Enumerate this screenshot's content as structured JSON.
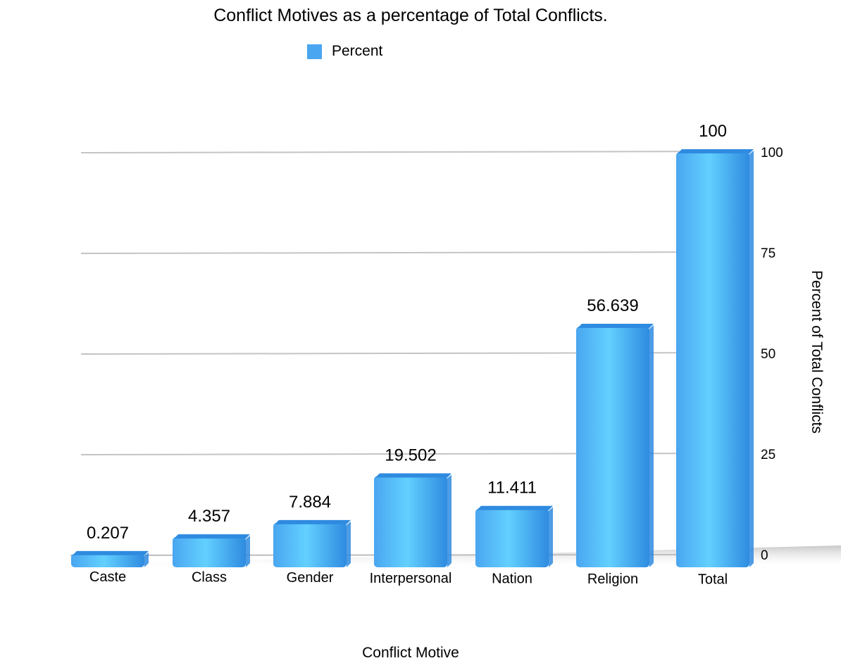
{
  "chart_data": {
    "type": "bar",
    "title": "Conflict Motives as a percentage of Total Conflicts.",
    "xlabel": "Conflict Motive",
    "ylabel": "Percent of Total Conflicts",
    "categories": [
      "Caste",
      "Class",
      "Gender",
      "Interpersonal",
      "Nation",
      "Religion",
      "Total"
    ],
    "series": [
      {
        "name": "Percent",
        "values": [
          0.207,
          4.357,
          7.884,
          19.502,
          11.411,
          56.639,
          100
        ],
        "data_labels": [
          "0.207",
          "4.357",
          "7.884",
          "19.502",
          "11.411",
          "56.639",
          "100"
        ]
      }
    ],
    "ylim": [
      0,
      100
    ],
    "yticks": [
      "0",
      "25",
      "50",
      "75",
      "100"
    ],
    "y_axis_side": "right",
    "grid": true,
    "legend": "top-center",
    "bar_color": "#4aa6f0",
    "bar_highlight": "#62d0ff",
    "bar_dark": "#2f8be0"
  }
}
